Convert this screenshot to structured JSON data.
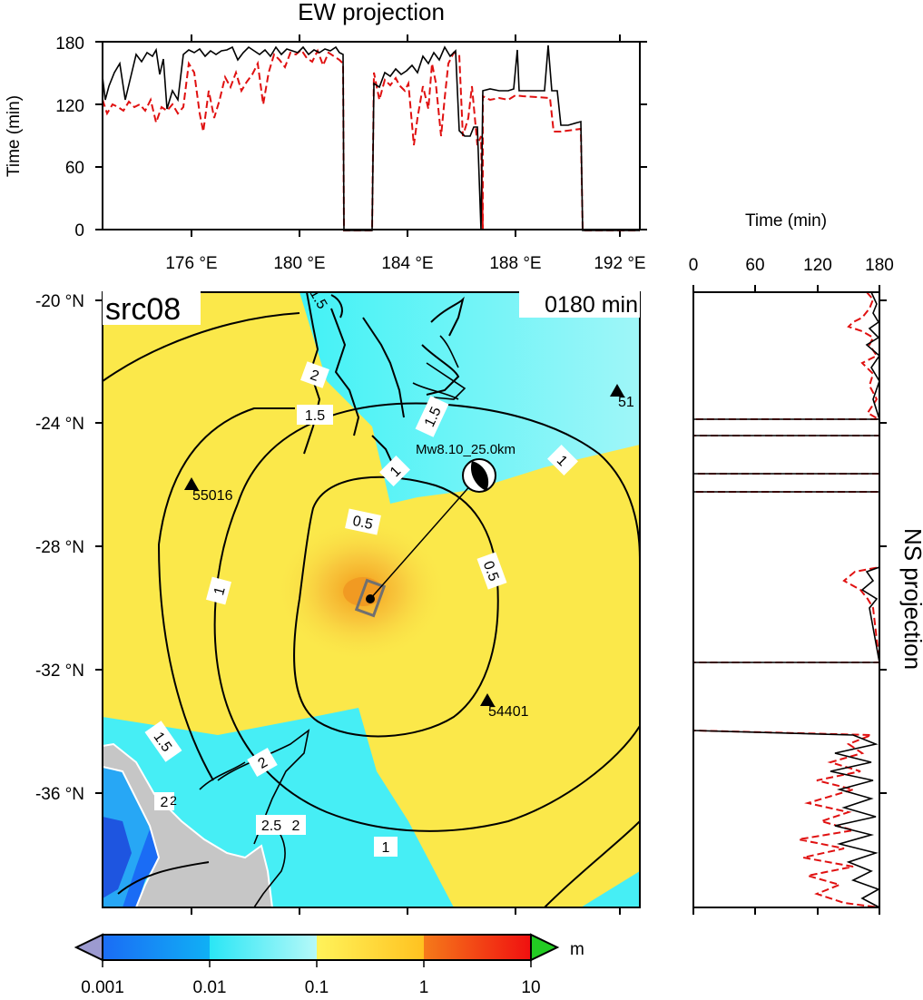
{
  "ew_panel": {
    "title": "EW projection",
    "ylabel": "Time (min)",
    "yticks": [
      "0",
      "60",
      "120",
      "180"
    ]
  },
  "ns_panel": {
    "title": "NS projection",
    "xlabel": "Time (min)",
    "xticks": [
      "0",
      "60",
      "120",
      "180"
    ]
  },
  "map": {
    "source_label": "src08",
    "time_label": "0180 min",
    "lon_ticks": [
      "176 °E",
      "180 °E",
      "184 °E",
      "188 °E",
      "192 °E"
    ],
    "lat_ticks": [
      "-20 °N",
      "-24 °N",
      "-28 °N",
      "-32 °N",
      "-36 °N"
    ],
    "event_label": "Mw8.10_25.0km",
    "stations": [
      {
        "id": "55016",
        "lon": 176.0,
        "lat": -26.0
      },
      {
        "id": "54401",
        "lon": 187.2,
        "lat": -33.0
      },
      {
        "id": "51",
        "lon": 191.9,
        "lat": -22.8
      }
    ],
    "epicenter": {
      "lon": 183.0,
      "lat": -29.6
    },
    "contour_labels": [
      "0.5",
      "0.5",
      "1",
      "1",
      "1",
      "1",
      "1.5",
      "1.5",
      "1.5",
      "2",
      "2",
      "2",
      "2.5",
      "2",
      "2",
      "1.5"
    ]
  },
  "colorbar": {
    "tick_labels": [
      "0.001",
      "0.01",
      "0.1",
      "1",
      "10"
    ],
    "unit": "m",
    "colors": {
      "underflow": "#9c9ad0",
      "overflow": "#22cc22",
      "stops": [
        "#1a6cf5",
        "#2ae6f5",
        "#c8fafa",
        "#fff040",
        "#ffb020",
        "#f01010"
      ]
    }
  },
  "colors": {
    "yellow": "#fbe84a",
    "cyan": "#42f2f6",
    "land": "#c6c6c6",
    "observed_line": "#000000",
    "simulated_line": "#e01010"
  }
}
